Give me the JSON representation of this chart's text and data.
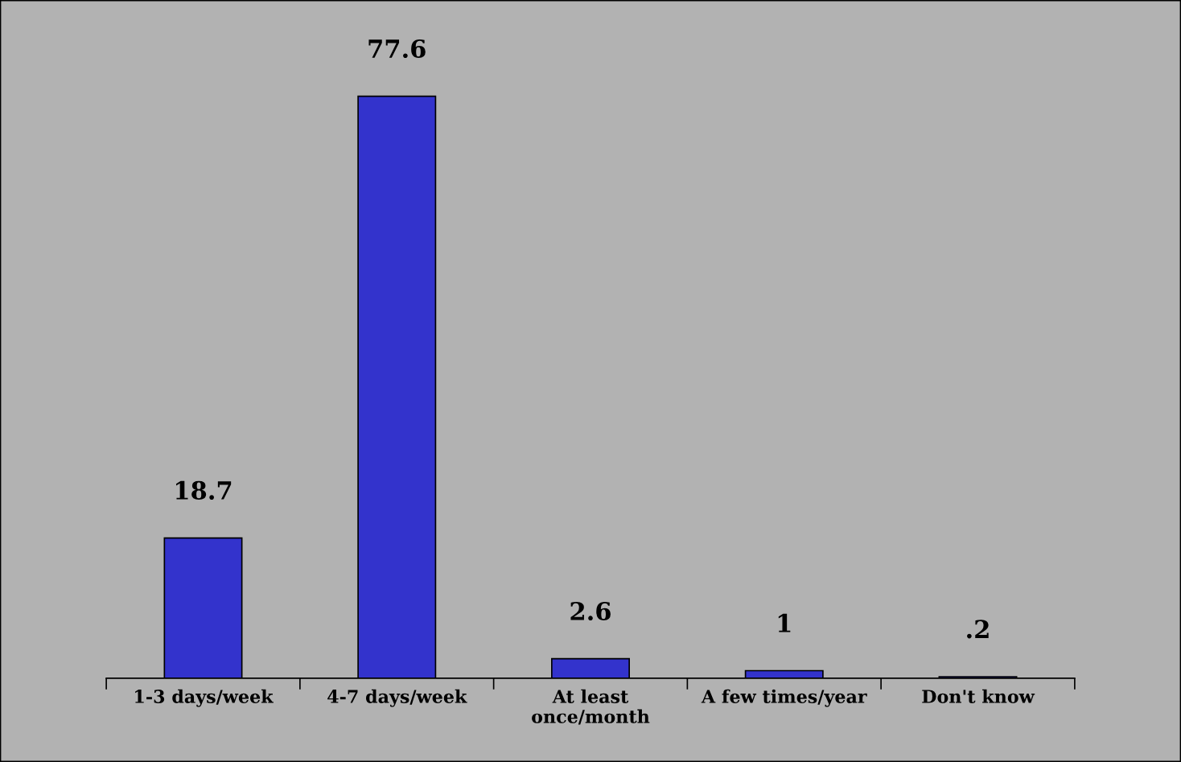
{
  "chart_data": {
    "type": "bar",
    "categories": [
      "1-3 days/week",
      "4-7 days/week",
      "At least\nonce/month",
      "A few times/year",
      "Don't know"
    ],
    "values": [
      18.7,
      77.6,
      2.6,
      1,
      0.2
    ],
    "value_labels": [
      "18.7",
      "77.6",
      "2.6",
      "1",
      ".2"
    ],
    "color": "#3333cc",
    "grid": false,
    "legend": false
  }
}
